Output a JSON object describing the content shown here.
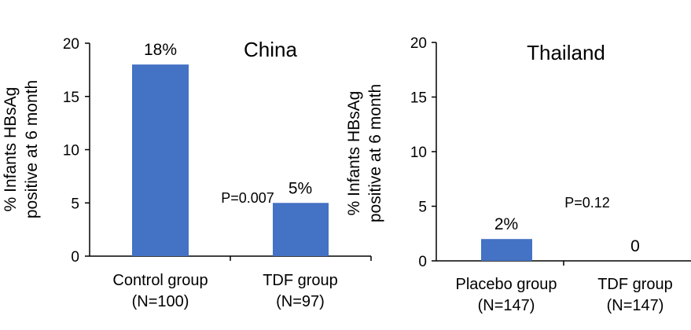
{
  "chart_data": [
    {
      "type": "bar",
      "title": "China",
      "ylabel_lines": [
        "% Infants HBsAg",
        "positive at 6 month"
      ],
      "ylim": [
        0,
        20
      ],
      "yticks": [
        0,
        5,
        10,
        15,
        20
      ],
      "categories": [
        {
          "line1": "Control group",
          "line2": "(N=100)"
        },
        {
          "line1": "TDF group",
          "line2": "(N=97)"
        }
      ],
      "values": [
        18,
        5
      ],
      "value_labels": [
        "18%",
        "5%"
      ],
      "annotation": "P=0.007",
      "bar_color": "#4472c4"
    },
    {
      "type": "bar",
      "title": "Thailand",
      "ylabel_lines": [
        "% Infants HBsAg",
        "positive at 6 month"
      ],
      "ylim": [
        0,
        20
      ],
      "yticks": [
        0,
        5,
        10,
        15,
        20
      ],
      "categories": [
        {
          "line1": "Placebo group",
          "line2": "(N=147)"
        },
        {
          "line1": "TDF group",
          "line2": "(N=147)"
        }
      ],
      "values": [
        2,
        0
      ],
      "value_labels": [
        "2%",
        "0"
      ],
      "annotation": "P=0.12",
      "bar_color": "#4472c4"
    }
  ]
}
